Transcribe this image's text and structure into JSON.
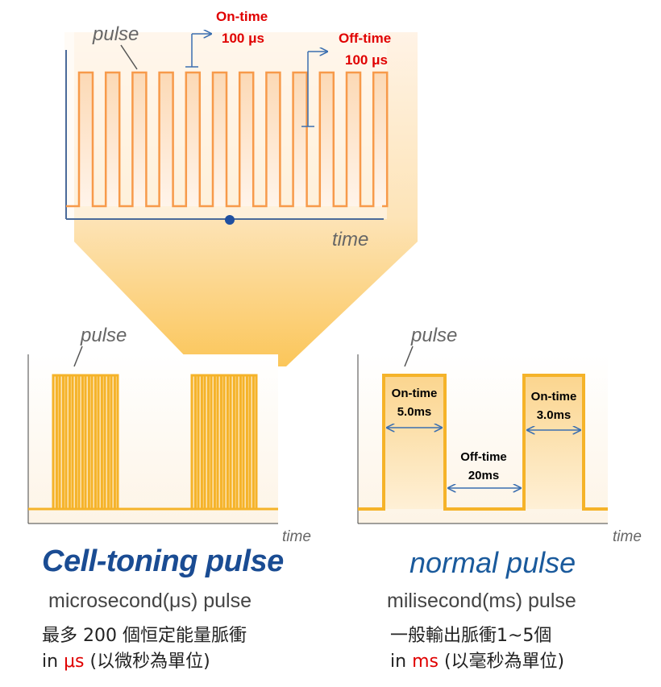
{
  "top_diagram": {
    "pulse_label": "pulse",
    "time_label": "time",
    "on_time": {
      "label": "On-time",
      "value": "100 μs"
    },
    "off_time": {
      "label": "Off-time",
      "value": "100 μs"
    }
  },
  "left_panel": {
    "pulse_label": "pulse",
    "time_label": "time",
    "title": "Cell-toning pulse",
    "subtitle": "microsecond(μs) pulse",
    "desc_line1": "最多 200 個恒定能量脈衝",
    "desc_line2_prefix": "in ",
    "desc_line2_unit": "μs",
    "desc_line2_suffix": " (以微秒為單位)"
  },
  "right_panel": {
    "pulse_label": "pulse",
    "time_label": "time",
    "on_time_1": {
      "label": "On-time",
      "value": "5.0ms"
    },
    "off_time": {
      "label": "Off-time",
      "value": "20ms"
    },
    "on_time_2": {
      "label": "On-time",
      "value": "3.0ms"
    },
    "title": "normal pulse",
    "subtitle": "milisecond(ms) pulse",
    "desc_line1": "一般輸出脈衝1~5個",
    "desc_line2_prefix": "in ",
    "desc_line2_unit": "ms",
    "desc_line2_suffix": " (以毫秒為單位)"
  },
  "colors": {
    "pulse_stroke": "#f79a4a",
    "panel_pulse": "#f5b329",
    "axis_blue": "#4a6a9a",
    "dot": "#1f4fa0",
    "title_blue": "#1a4c93",
    "red_text": "#e00000"
  }
}
